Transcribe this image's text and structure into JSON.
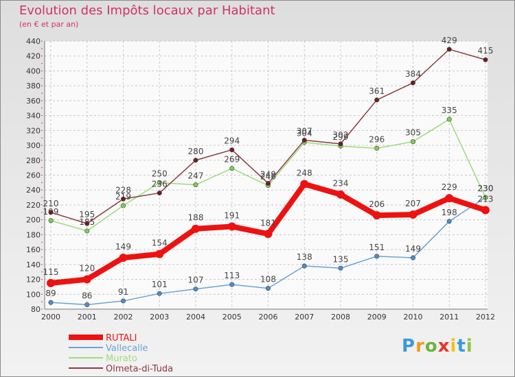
{
  "chart_data": {
    "type": "line",
    "title": "Evolution des Impôts locaux par Habitant",
    "subtitle": "(en € et par an)",
    "xlabel": "",
    "ylabel": "",
    "x": [
      "2000",
      "2001",
      "2002",
      "2003",
      "2004",
      "2005",
      "2006",
      "2007",
      "2008",
      "2009",
      "2010",
      "2011",
      "2012"
    ],
    "ylim": [
      80,
      440
    ],
    "yticks": [
      80,
      100,
      120,
      140,
      160,
      180,
      200,
      220,
      240,
      260,
      280,
      300,
      320,
      340,
      360,
      380,
      400,
      420,
      440
    ],
    "grid": true,
    "legend_position": "bottom-left",
    "series": [
      {
        "name": "Vallecalle",
        "color": "#6aa3d4",
        "marker_color": "#4a8fd0",
        "values": [
          89,
          86,
          91,
          101,
          107,
          113,
          108,
          138,
          135,
          151,
          149,
          198,
          230
        ],
        "labels": [
          "89",
          "86",
          "91",
          "101",
          "107",
          "113",
          "108",
          "138",
          "135",
          "151",
          "149",
          "198",
          "230"
        ]
      },
      {
        "name": "Murato",
        "color": "#9ddc7a",
        "marker_color": "#7ed04e",
        "values": [
          199,
          185,
          219,
          250,
          247,
          269,
          246,
          304,
          299,
          296,
          305,
          335,
          230
        ],
        "labels": [
          "199",
          "185",
          "219",
          "250",
          "247",
          "269",
          "246",
          "304",
          "299",
          "296",
          "305",
          "335",
          "230"
        ]
      },
      {
        "name": "Olmeta-di-Tuda",
        "color": "#8a3a3e",
        "marker_color": "#6a1e22",
        "values": [
          210,
          195,
          228,
          236,
          280,
          294,
          249,
          307,
          302,
          361,
          384,
          429,
          415
        ],
        "labels": [
          "210",
          "195",
          "228",
          "236",
          "280",
          "294",
          "249",
          "307",
          "302",
          "361",
          "384",
          "429",
          "415"
        ]
      },
      {
        "name": "RUTALI",
        "color": "#ee1111",
        "marker_color": "#ee1111",
        "values": [
          115,
          120,
          149,
          154,
          188,
          191,
          181,
          248,
          234,
          206,
          207,
          229,
          213
        ],
        "labels": [
          "115",
          "120",
          "149",
          "154",
          "188",
          "191",
          "181",
          "248",
          "234",
          "206",
          "207",
          "229",
          "213"
        ]
      }
    ],
    "legend": [
      "RUTALI",
      "Vallecalle",
      "Murato",
      "Olmeta-di-Tuda"
    ]
  },
  "logo": {
    "letters": [
      "P",
      "r",
      "o",
      "x",
      "i",
      "t",
      "i"
    ],
    "colors": [
      "#3a9ad9",
      "#f29a1d",
      "#6cb33f",
      "#e8332a",
      "#f2c318",
      "#3a9ad9",
      "#8dc63f"
    ]
  }
}
